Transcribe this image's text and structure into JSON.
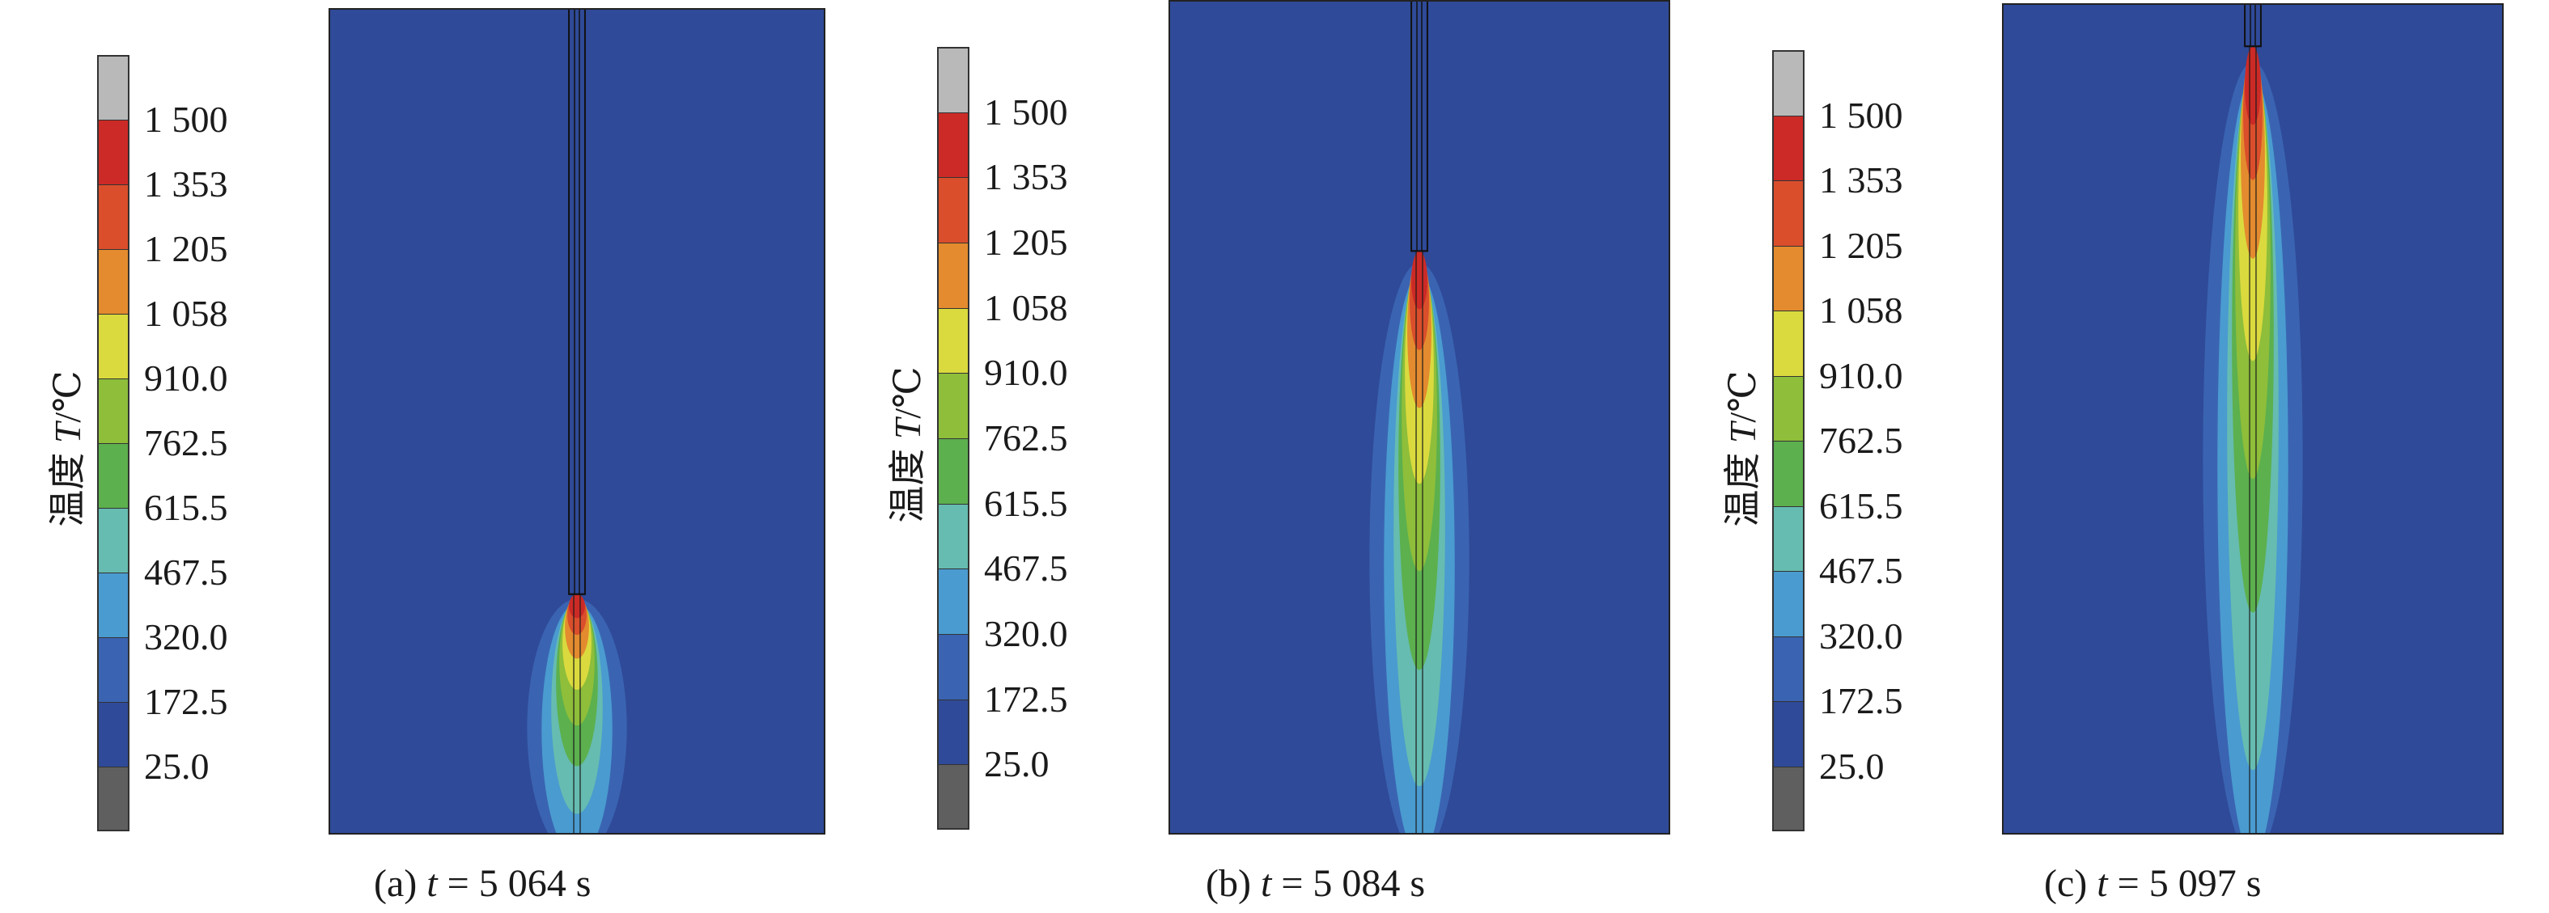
{
  "colorbar": {
    "label_prefix": "温度 ",
    "label_var": "T",
    "label_unit": "/℃",
    "ticks": [
      "1 500",
      "1 353",
      "1 205",
      "1 058",
      "910.0",
      "762.5",
      "615.5",
      "467.5",
      "320.0",
      "172.5",
      "25.0"
    ],
    "colors": [
      "#b9b9b9",
      "#cc2a26",
      "#da4e2b",
      "#e38b2e",
      "#dada3e",
      "#8ebe3a",
      "#5cb04e",
      "#66bcb0",
      "#4a9bd0",
      "#3a64b2",
      "#2f4a98",
      "#5f5f5f"
    ]
  },
  "panels": [
    {
      "caption_prefix": "(a) ",
      "caption_var": "t",
      "caption_suffix": " = 5 064 s",
      "hot_top_fraction": 0.71
    },
    {
      "caption_prefix": "(b) ",
      "caption_var": "t",
      "caption_suffix": " = 5 084 s",
      "hot_top_fraction": 0.3
    },
    {
      "caption_prefix": "(c) ",
      "caption_var": "t",
      "caption_suffix": " = 5 097 s",
      "hot_top_fraction": 0.05
    }
  ]
}
